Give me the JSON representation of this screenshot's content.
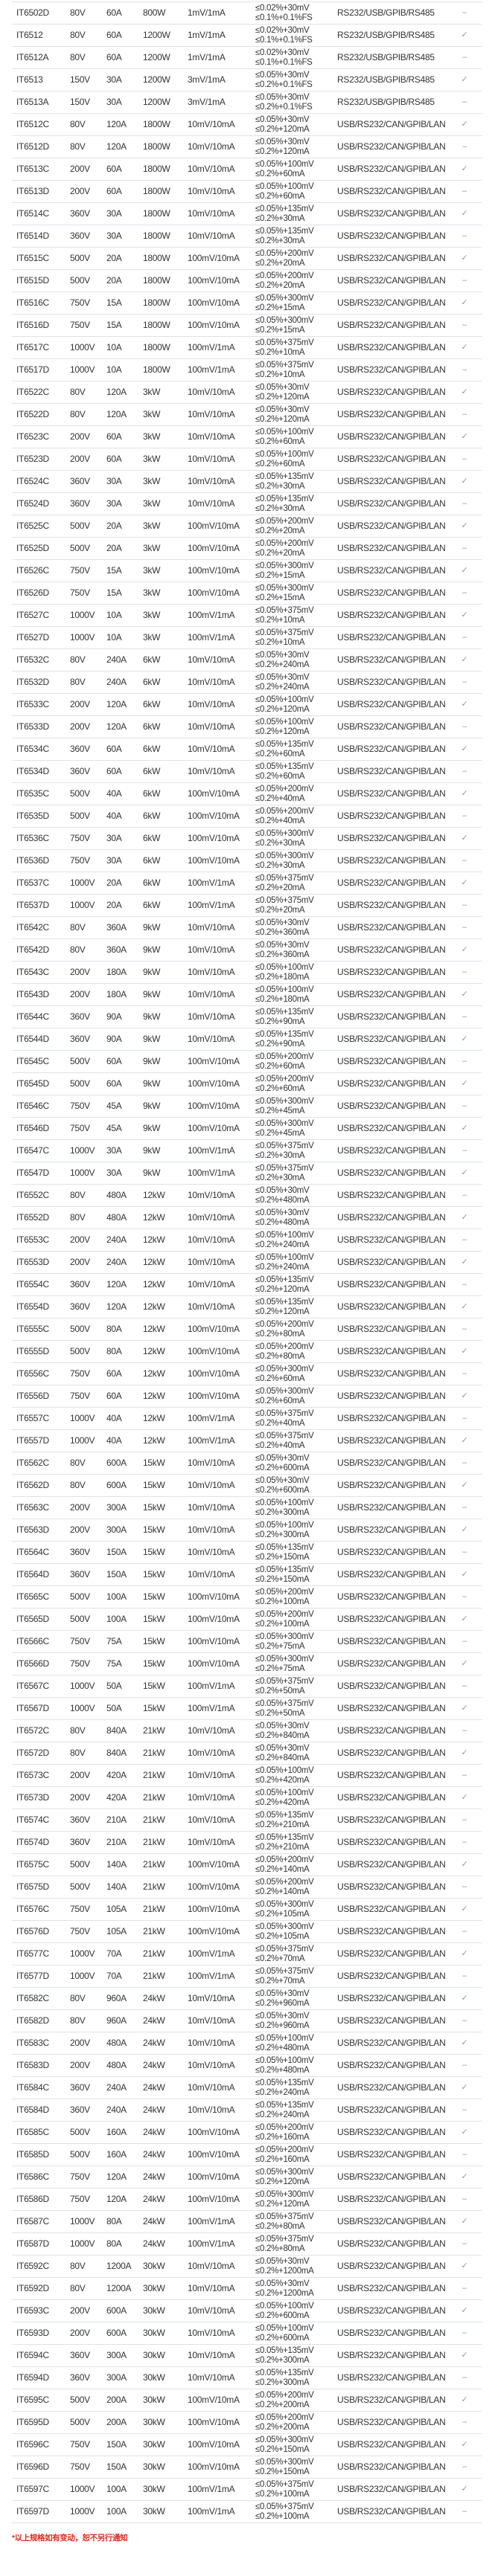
{
  "colors": {
    "text": "#333333",
    "border": "#dde3ea",
    "note": "#e02a1e",
    "mark": "#999999"
  },
  "rows": [
    [
      "IT6502D",
      "80V",
      "60A",
      "800W",
      "1mV/1mA",
      "≤0.02%+30mV",
      "≤0.1%+0.1%FS",
      "RS232/USB/GPIB/RS485",
      "–"
    ],
    [
      "IT6512",
      "80V",
      "60A",
      "1200W",
      "1mV/1mA",
      "≤0.02%+30mV",
      "≤0.1%+0.1%FS",
      "RS232/USB/GPIB/RS485",
      "✓"
    ],
    [
      "IT6512A",
      "80V",
      "60A",
      "1200W",
      "1mV/1mA",
      "≤0.02%+30mV",
      "≤0.1%+0.1%FS",
      "RS232/USB/GPIB/RS485",
      "–"
    ],
    [
      "IT6513",
      "150V",
      "30A",
      "1200W",
      "3mV/1mA",
      "≤0.05%+30mV",
      "≤0.2%+0.1%FS",
      "RS232/USB/GPIB/RS485",
      "✓"
    ],
    [
      "IT6513A",
      "150V",
      "30A",
      "1200W",
      "3mV/1mA",
      "≤0.05%+30mV",
      "≤0.2%+0.1%FS",
      "RS232/USB/GPIB/RS485",
      "–"
    ],
    [
      "IT6512C",
      "80V",
      "120A",
      "1800W",
      "10mV/10mA",
      "≤0.05%+30mV",
      "≤0.2%+120mA",
      "USB/RS232/CAN/GPIB/LAN",
      "✓"
    ],
    [
      "IT6512D",
      "80V",
      "120A",
      "1800W",
      "10mV/10mA",
      "≤0.05%+30mV",
      "≤0.2%+120mA",
      "USB/RS232/CAN/GPIB/LAN",
      "–"
    ],
    [
      "IT6513C",
      "200V",
      "60A",
      "1800W",
      "10mV/10mA",
      "≤0.05%+100mV",
      "≤0.2%+60mA",
      "USB/RS232/CAN/GPIB/LAN",
      "✓"
    ],
    [
      "IT6513D",
      "200V",
      "60A",
      "1800W",
      "10mV/10mA",
      "≤0.05%+100mV",
      "≤0.2%+60mA",
      "USB/RS232/CAN/GPIB/LAN",
      "–"
    ],
    [
      "IT6514C",
      "360V",
      "30A",
      "1800W",
      "10mV/10mA",
      "≤0.05%+135mV",
      "≤0.2%+30mA",
      "USB/RS232/CAN/GPIB/LAN",
      "✓"
    ],
    [
      "IT6514D",
      "360V",
      "30A",
      "1800W",
      "10mV/10mA",
      "≤0.05%+135mV",
      "≤0.2%+30mA",
      "USB/RS232/CAN/GPIB/LAN",
      "–"
    ],
    [
      "IT6515C",
      "500V",
      "20A",
      "1800W",
      "100mV/10mA",
      "≤0.05%+200mV",
      "≤0.2%+20mA",
      "USB/RS232/CAN/GPIB/LAN",
      "✓"
    ],
    [
      "IT6515D",
      "500V",
      "20A",
      "1800W",
      "100mV/10mA",
      "≤0.05%+200mV",
      "≤0.2%+20mA",
      "USB/RS232/CAN/GPIB/LAN",
      "–"
    ],
    [
      "IT6516C",
      "750V",
      "15A",
      "1800W",
      "100mV/10mA",
      "≤0.05%+300mV",
      "≤0.2%+15mA",
      "USB/RS232/CAN/GPIB/LAN",
      "✓"
    ],
    [
      "IT6516D",
      "750V",
      "15A",
      "1800W",
      "100mV/10mA",
      "≤0.05%+300mV",
      "≤0.2%+15mA",
      "USB/RS232/CAN/GPIB/LAN",
      "–"
    ],
    [
      "IT6517C",
      "1000V",
      "10A",
      "1800W",
      "100mV/1mA",
      "≤0.05%+375mV",
      "≤0.2%+10mA",
      "USB/RS232/CAN/GPIB/LAN",
      "✓"
    ],
    [
      "IT6517D",
      "1000V",
      "10A",
      "1800W",
      "100mV/1mA",
      "≤0.05%+375mV",
      "≤0.2%+10mA",
      "USB/RS232/CAN/GPIB/LAN",
      "–"
    ],
    [
      "IT6522C",
      "80V",
      "120A",
      "3kW",
      "10mV/10mA",
      "≤0.05%+30mV",
      "≤0.2%+120mA",
      "USB/RS232/CAN/GPIB/LAN",
      "✓"
    ],
    [
      "IT6522D",
      "80V",
      "120A",
      "3kW",
      "10mV/10mA",
      "≤0.05%+30mV",
      "≤0.2%+120mA",
      "USB/RS232/CAN/GPIB/LAN",
      "–"
    ],
    [
      "IT6523C",
      "200V",
      "60A",
      "3kW",
      "10mV/10mA",
      "≤0.05%+100mV",
      "≤0.2%+60mA",
      "USB/RS232/CAN/GPIB/LAN",
      "✓"
    ],
    [
      "IT6523D",
      "200V",
      "60A",
      "3kW",
      "10mV/10mA",
      "≤0.05%+100mV",
      "≤0.2%+60mA",
      "USB/RS232/CAN/GPIB/LAN",
      "–"
    ],
    [
      "IT6524C",
      "360V",
      "30A",
      "3kW",
      "10mV/10mA",
      "≤0.05%+135mV",
      "≤0.2%+30mA",
      "USB/RS232/CAN/GPIB/LAN",
      "✓"
    ],
    [
      "IT6524D",
      "360V",
      "30A",
      "3kW",
      "10mV/10mA",
      "≤0.05%+135mV",
      "≤0.2%+30mA",
      "USB/RS232/CAN/GPIB/LAN",
      "–"
    ],
    [
      "IT6525C",
      "500V",
      "20A",
      "3kW",
      "100mV/10mA",
      "≤0.05%+200mV",
      "≤0.2%+20mA",
      "USB/RS232/CAN/GPIB/LAN",
      "✓"
    ],
    [
      "IT6525D",
      "500V",
      "20A",
      "3kW",
      "100mV/10mA",
      "≤0.05%+200mV",
      "≤0.2%+20mA",
      "USB/RS232/CAN/GPIB/LAN",
      "–"
    ],
    [
      "IT6526C",
      "750V",
      "15A",
      "3kW",
      "100mV/10mA",
      "≤0.05%+300mV",
      "≤0.2%+15mA",
      "USB/RS232/CAN/GPIB/LAN",
      "✓"
    ],
    [
      "IT6526D",
      "750V",
      "15A",
      "3kW",
      "100mV/10mA",
      "≤0.05%+300mV",
      "≤0.2%+15mA",
      "USB/RS232/CAN/GPIB/LAN",
      "–"
    ],
    [
      "IT6527C",
      "1000V",
      "10A",
      "3kW",
      "100mV/1mA",
      "≤0.05%+375mV",
      "≤0.2%+10mA",
      "USB/RS232/CAN/GPIB/LAN",
      "✓"
    ],
    [
      "IT6527D",
      "1000V",
      "10A",
      "3kW",
      "100mV/1mA",
      "≤0.05%+375mV",
      "≤0.2%+10mA",
      "USB/RS232/CAN/GPIB/LAN",
      "–"
    ],
    [
      "IT6532C",
      "80V",
      "240A",
      "6kW",
      "10mV/10mA",
      "≤0.05%+30mV",
      "≤0.2%+240mA",
      "USB/RS232/CAN/GPIB/LAN",
      "✓"
    ],
    [
      "IT6532D",
      "80V",
      "240A",
      "6kW",
      "10mV/10mA",
      "≤0.05%+30mV",
      "≤0.2%+240mA",
      "USB/RS232/CAN/GPIB/LAN",
      "–"
    ],
    [
      "IT6533C",
      "200V",
      "120A",
      "6kW",
      "10mV/10mA",
      "≤0.05%+100mV",
      "≤0.2%+120mA",
      "USB/RS232/CAN/GPIB/LAN",
      "✓"
    ],
    [
      "IT6533D",
      "200V",
      "120A",
      "6kW",
      "10mV/10mA",
      "≤0.05%+100mV",
      "≤0.2%+120mA",
      "USB/RS232/CAN/GPIB/LAN",
      "–"
    ],
    [
      "IT6534C",
      "360V",
      "60A",
      "6kW",
      "10mV/10mA",
      "≤0.05%+135mV",
      "≤0.2%+60mA",
      "USB/RS232/CAN/GPIB/LAN",
      "✓"
    ],
    [
      "IT6534D",
      "360V",
      "60A",
      "6kW",
      "10mV/10mA",
      "≤0.05%+135mV",
      "≤0.2%+60mA",
      "USB/RS232/CAN/GPIB/LAN",
      "–"
    ],
    [
      "IT6535C",
      "500V",
      "40A",
      "6kW",
      "100mV/10mA",
      "≤0.05%+200mV",
      "≤0.2%+40mA",
      "USB/RS232/CAN/GPIB/LAN",
      "✓"
    ],
    [
      "IT6535D",
      "500V",
      "40A",
      "6kW",
      "100mV/10mA",
      "≤0.05%+200mV",
      "≤0.2%+40mA",
      "USB/RS232/CAN/GPIB/LAN",
      "–"
    ],
    [
      "IT6536C",
      "750V",
      "30A",
      "6kW",
      "100mV/10mA",
      "≤0.05%+300mV",
      "≤0.2%+30mA",
      "USB/RS232/CAN/GPIB/LAN",
      "✓"
    ],
    [
      "IT6536D",
      "750V",
      "30A",
      "6kW",
      "100mV/10mA",
      "≤0.05%+300mV",
      "≤0.2%+30mA",
      "USB/RS232/CAN/GPIB/LAN",
      "–"
    ],
    [
      "IT6537C",
      "1000V",
      "20A",
      "6kW",
      "100mV/1mA",
      "≤0.05%+375mV",
      "≤0.2%+20mA",
      "USB/RS232/CAN/GPIB/LAN",
      "✓"
    ],
    [
      "IT6537D",
      "1000V",
      "20A",
      "6kW",
      "100mV/1mA",
      "≤0.05%+375mV",
      "≤0.2%+20mA",
      "USB/RS232/CAN/GPIB/LAN",
      "–"
    ],
    [
      "IT6542C",
      "80V",
      "360A",
      "9kW",
      "10mV/10mA",
      "≤0.05%+30mV",
      "≤0.2%+360mA",
      "USB/RS232/CAN/GPIB/LAN",
      "–"
    ],
    [
      "IT6542D",
      "80V",
      "360A",
      "9kW",
      "10mV/10mA",
      "≤0.05%+30mV",
      "≤0.2%+360mA",
      "USB/RS232/CAN/GPIB/LAN",
      "✓"
    ],
    [
      "IT6543C",
      "200V",
      "180A",
      "9kW",
      "10mV/10mA",
      "≤0.05%+100mV",
      "≤0.2%+180mA",
      "USB/RS232/CAN/GPIB/LAN",
      "–"
    ],
    [
      "IT6543D",
      "200V",
      "180A",
      "9kW",
      "10mV/10mA",
      "≤0.05%+100mV",
      "≤0.2%+180mA",
      "USB/RS232/CAN/GPIB/LAN",
      "✓"
    ],
    [
      "IT6544C",
      "360V",
      "90A",
      "9kW",
      "10mV/10mA",
      "≤0.05%+135mV",
      "≤0.2%+90mA",
      "USB/RS232/CAN/GPIB/LAN",
      "–"
    ],
    [
      "IT6544D",
      "360V",
      "90A",
      "9kW",
      "10mV/10mA",
      "≤0.05%+135mV",
      "≤0.2%+90mA",
      "USB/RS232/CAN/GPIB/LAN",
      "✓"
    ],
    [
      "IT6545C",
      "500V",
      "60A",
      "9kW",
      "100mV/10mA",
      "≤0.05%+200mV",
      "≤0.2%+60mA",
      "USB/RS232/CAN/GPIB/LAN",
      "–"
    ],
    [
      "IT6545D",
      "500V",
      "60A",
      "9kW",
      "100mV/10mA",
      "≤0.05%+200mV",
      "≤0.2%+60mA",
      "USB/RS232/CAN/GPIB/LAN",
      "✓"
    ],
    [
      "IT6546C",
      "750V",
      "45A",
      "9kW",
      "100mV/10mA",
      "≤0.05%+300mV",
      "≤0.2%+45mA",
      "USB/RS232/CAN/GPIB/LAN",
      "–"
    ],
    [
      "IT6546D",
      "750V",
      "45A",
      "9kW",
      "100mV/10mA",
      "≤0.05%+300mV",
      "≤0.2%+45mA",
      "USB/RS232/CAN/GPIB/LAN",
      "✓"
    ],
    [
      "IT6547C",
      "1000V",
      "30A",
      "9kW",
      "100mV/1mA",
      "≤0.05%+375mV",
      "≤0.2%+30mA",
      "USB/RS232/CAN/GPIB/LAN",
      "–"
    ],
    [
      "IT6547D",
      "1000V",
      "30A",
      "9kW",
      "100mV/1mA",
      "≤0.05%+375mV",
      "≤0.2%+30mA",
      "USB/RS232/CAN/GPIB/LAN",
      "✓"
    ],
    [
      "IT6552C",
      "80V",
      "480A",
      "12kW",
      "10mV/10mA",
      "≤0.05%+30mV",
      "≤0.2%+480mA",
      "USB/RS232/CAN/GPIB/LAN",
      "–"
    ],
    [
      "IT6552D",
      "80V",
      "480A",
      "12kW",
      "10mV/10mA",
      "≤0.05%+30mV",
      "≤0.2%+480mA",
      "USB/RS232/CAN/GPIB/LAN",
      "✓"
    ],
    [
      "IT6553C",
      "200V",
      "240A",
      "12kW",
      "10mV/10mA",
      "≤0.05%+100mV",
      "≤0.2%+240mA",
      "USB/RS232/CAN/GPIB/LAN",
      "–"
    ],
    [
      "IT6553D",
      "200V",
      "240A",
      "12kW",
      "10mV/10mA",
      "≤0.05%+100mV",
      "≤0.2%+240mA",
      "USB/RS232/CAN/GPIB/LAN",
      "✓"
    ],
    [
      "IT6554C",
      "360V",
      "120A",
      "12kW",
      "10mV/10mA",
      "≤0.05%+135mV",
      "≤0.2%+120mA",
      "USB/RS232/CAN/GPIB/LAN",
      "–"
    ],
    [
      "IT6554D",
      "360V",
      "120A",
      "12kW",
      "10mV/10mA",
      "≤0.05%+135mV",
      "≤0.2%+120mA",
      "USB/RS232/CAN/GPIB/LAN",
      "✓"
    ],
    [
      "IT6555C",
      "500V",
      "80A",
      "12kW",
      "100mV/10mA",
      "≤0.05%+200mV",
      "≤0.2%+80mA",
      "USB/RS232/CAN/GPIB/LAN",
      "–"
    ],
    [
      "IT6555D",
      "500V",
      "80A",
      "12kW",
      "100mV/10mA",
      "≤0.05%+200mV",
      "≤0.2%+80mA",
      "USB/RS232/CAN/GPIB/LAN",
      "✓"
    ],
    [
      "IT6556C",
      "750V",
      "60A",
      "12kW",
      "100mV/10mA",
      "≤0.05%+300mV",
      "≤0.2%+60mA",
      "USB/RS232/CAN/GPIB/LAN",
      "–"
    ],
    [
      "IT6556D",
      "750V",
      "60A",
      "12kW",
      "100mV/10mA",
      "≤0.05%+300mV",
      "≤0.2%+60mA",
      "USB/RS232/CAN/GPIB/LAN",
      "✓"
    ],
    [
      "IT6557C",
      "1000V",
      "40A",
      "12kW",
      "100mV/1mA",
      "≤0.05%+375mV",
      "≤0.2%+40mA",
      "USB/RS232/CAN/GPIB/LAN",
      "–"
    ],
    [
      "IT6557D",
      "1000V",
      "40A",
      "12kW",
      "100mV/1mA",
      "≤0.05%+375mV",
      "≤0.2%+40mA",
      "USB/RS232/CAN/GPIB/LAN",
      "✓"
    ],
    [
      "IT6562C",
      "80V",
      "600A",
      "15kW",
      "10mV/10mA",
      "≤0.05%+30mV",
      "≤0.2%+600mA",
      "USB/RS232/CAN/GPIB/LAN",
      "–"
    ],
    [
      "IT6562D",
      "80V",
      "600A",
      "15kW",
      "10mV/10mA",
      "≤0.05%+30mV",
      "≤0.2%+600mA",
      "USB/RS232/CAN/GPIB/LAN",
      "✓"
    ],
    [
      "IT6563C",
      "200V",
      "300A",
      "15kW",
      "10mV/10mA",
      "≤0.05%+100mV",
      "≤0.2%+300mA",
      "USB/RS232/CAN/GPIB/LAN",
      "–"
    ],
    [
      "IT6563D",
      "200V",
      "300A",
      "15kW",
      "10mV/10mA",
      "≤0.05%+100mV",
      "≤0.2%+300mA",
      "USB/RS232/CAN/GPIB/LAN",
      "✓"
    ],
    [
      "IT6564C",
      "360V",
      "150A",
      "15kW",
      "10mV/10mA",
      "≤0.05%+135mV",
      "≤0.2%+150mA",
      "USB/RS232/CAN/GPIB/LAN",
      "–"
    ],
    [
      "IT6564D",
      "360V",
      "150A",
      "15kW",
      "10mV/10mA",
      "≤0.05%+135mV",
      "≤0.2%+150mA",
      "USB/RS232/CAN/GPIB/LAN",
      "✓"
    ],
    [
      "IT6565C",
      "500V",
      "100A",
      "15kW",
      "100mV/10mA",
      "≤0.05%+200mV",
      "≤0.2%+100mA",
      "USB/RS232/CAN/GPIB/LAN",
      "–"
    ],
    [
      "IT6565D",
      "500V",
      "100A",
      "15kW",
      "100mV/10mA",
      "≤0.05%+200mV",
      "≤0.2%+100mA",
      "USB/RS232/CAN/GPIB/LAN",
      "✓"
    ],
    [
      "IT6566C",
      "750V",
      "75A",
      "15kW",
      "100mV/10mA",
      "≤0.05%+300mV",
      "≤0.2%+75mA",
      "USB/RS232/CAN/GPIB/LAN",
      "–"
    ],
    [
      "IT6566D",
      "750V",
      "75A",
      "15kW",
      "100mV/10mA",
      "≤0.05%+300mV",
      "≤0.2%+75mA",
      "USB/RS232/CAN/GPIB/LAN",
      "✓"
    ],
    [
      "IT6567C",
      "1000V",
      "50A",
      "15kW",
      "100mV/1mA",
      "≤0.05%+375mV",
      "≤0.2%+50mA",
      "USB/RS232/CAN/GPIB/LAN",
      "–"
    ],
    [
      "IT6567D",
      "1000V",
      "50A",
      "15kW",
      "100mV/1mA",
      "≤0.05%+375mV",
      "≤0.2%+50mA",
      "USB/RS232/CAN/GPIB/LAN",
      "✓"
    ],
    [
      "IT6572C",
      "80V",
      "840A",
      "21kW",
      "10mV/10mA",
      "≤0.05%+30mV",
      "≤0.2%+840mA",
      "USB/RS232/CAN/GPIB/LAN",
      "–"
    ],
    [
      "IT6572D",
      "80V",
      "840A",
      "21kW",
      "10mV/10mA",
      "≤0.05%+30mV",
      "≤0.2%+840mA",
      "USB/RS232/CAN/GPIB/LAN",
      "✓"
    ],
    [
      "IT6573C",
      "200V",
      "420A",
      "21kW",
      "10mV/10mA",
      "≤0.05%+100mV",
      "≤0.2%+420mA",
      "USB/RS232/CAN/GPIB/LAN",
      "–"
    ],
    [
      "IT6573D",
      "200V",
      "420A",
      "21kW",
      "10mV/10mA",
      "≤0.05%+100mV",
      "≤0.2%+420mA",
      "USB/RS232/CAN/GPIB/LAN",
      "✓"
    ],
    [
      "IT6574C",
      "360V",
      "210A",
      "21kW",
      "10mV/10mA",
      "≤0.05%+135mV",
      "≤0.2%+210mA",
      "USB/RS232/CAN/GPIB/LAN",
      "–"
    ],
    [
      "IT6574D",
      "360V",
      "210A",
      "21kW",
      "10mV/10mA",
      "≤0.05%+135mV",
      "≤0.2%+210mA",
      "USB/RS232/CAN/GPIB/LAN",
      "–"
    ],
    [
      "IT6575C",
      "500V",
      "140A",
      "21kW",
      "100mV/10mA",
      "≤0.05%+200mV",
      "≤0.2%+140mA",
      "USB/RS232/CAN/GPIB/LAN",
      "✓"
    ],
    [
      "IT6575D",
      "500V",
      "140A",
      "21kW",
      "100mV/10mA",
      "≤0.05%+200mV",
      "≤0.2%+140mA",
      "USB/RS232/CAN/GPIB/LAN",
      "–"
    ],
    [
      "IT6576C",
      "750V",
      "105A",
      "21kW",
      "100mV/10mA",
      "≤0.05%+300mV",
      "≤0.2%+105mA",
      "USB/RS232/CAN/GPIB/LAN",
      "✓"
    ],
    [
      "IT6576D",
      "750V",
      "105A",
      "21kW",
      "100mV/10mA",
      "≤0.05%+300mV",
      "≤0.2%+105mA",
      "USB/RS232/CAN/GPIB/LAN",
      "–"
    ],
    [
      "IT6577C",
      "1000V",
      "70A",
      "21kW",
      "100mV/1mA",
      "≤0.05%+375mV",
      "≤0.2%+70mA",
      "USB/RS232/CAN/GPIB/LAN",
      "✓"
    ],
    [
      "IT6577D",
      "1000V",
      "70A",
      "21kW",
      "100mV/1mA",
      "≤0.05%+375mV",
      "≤0.2%+70mA",
      "USB/RS232/CAN/GPIB/LAN",
      "–"
    ],
    [
      "IT6582C",
      "80V",
      "960A",
      "24kW",
      "10mV/10mA",
      "≤0.05%+30mV",
      "≤0.2%+960mA",
      "USB/RS232/CAN/GPIB/LAN",
      "✓"
    ],
    [
      "IT6582D",
      "80V",
      "960A",
      "24kW",
      "10mV/10mA",
      "≤0.05%+30mV",
      "≤0.2%+960mA",
      "USB/RS232/CAN/GPIB/LAN",
      "–"
    ],
    [
      "IT6583C",
      "200V",
      "480A",
      "24kW",
      "10mV/10mA",
      "≤0.05%+100mV",
      "≤0.2%+480mA",
      "USB/RS232/CAN/GPIB/LAN",
      "✓"
    ],
    [
      "IT6583D",
      "200V",
      "480A",
      "24kW",
      "10mV/10mA",
      "≤0.05%+100mV",
      "≤0.2%+480mA",
      "USB/RS232/CAN/GPIB/LAN",
      "–"
    ],
    [
      "IT6584C",
      "360V",
      "240A",
      "24kW",
      "10mV/10mA",
      "≤0.05%+135mV",
      "≤0.2%+240mA",
      "USB/RS232/CAN/GPIB/LAN",
      "✓"
    ],
    [
      "IT6584D",
      "360V",
      "240A",
      "24kW",
      "10mV/10mA",
      "≤0.05%+135mV",
      "≤0.2%+240mA",
      "USB/RS232/CAN/GPIB/LAN",
      "–"
    ],
    [
      "IT6585C",
      "500V",
      "160A",
      "24kW",
      "100mV/10mA",
      "≤0.05%+200mV",
      "≤0.2%+160mA",
      "USB/RS232/CAN/GPIB/LAN",
      "✓"
    ],
    [
      "IT6585D",
      "500V",
      "160A",
      "24kW",
      "100mV/10mA",
      "≤0.05%+200mV",
      "≤0.2%+160mA",
      "USB/RS232/CAN/GPIB/LAN",
      "–"
    ],
    [
      "IT6586C",
      "750V",
      "120A",
      "24kW",
      "100mV/10mA",
      "≤0.05%+300mV",
      "≤0.2%+120mA",
      "USB/RS232/CAN/GPIB/LAN",
      "✓"
    ],
    [
      "IT6586D",
      "750V",
      "120A",
      "24kW",
      "100mV/10mA",
      "≤0.05%+300mV",
      "≤0.2%+120mA",
      "USB/RS232/CAN/GPIB/LAN",
      "–"
    ],
    [
      "IT6587C",
      "1000V",
      "80A",
      "24kW",
      "100mV/1mA",
      "≤0.05%+375mV",
      "≤0.2%+80mA",
      "USB/RS232/CAN/GPIB/LAN",
      "✓"
    ],
    [
      "IT6587D",
      "1000V",
      "80A",
      "24kW",
      "100mV/1mA",
      "≤0.05%+375mV",
      "≤0.2%+80mA",
      "USB/RS232/CAN/GPIB/LAN",
      "–"
    ],
    [
      "IT6592C",
      "80V",
      "1200A",
      "30kW",
      "10mV/10mA",
      "≤0.05%+30mV",
      "≤0.2%+1200mA",
      "USB/RS232/CAN/GPIB/LAN",
      "✓"
    ],
    [
      "IT6592D",
      "80V",
      "1200A",
      "30kW",
      "10mV/10mA",
      "≤0.05%+30mV",
      "≤0.2%+1200mA",
      "USB/RS232/CAN/GPIB/LAN",
      "–"
    ],
    [
      "IT6593C",
      "200V",
      "600A",
      "30kW",
      "10mV/10mA",
      "≤0.05%+100mV",
      "≤0.2%+600mA",
      "USB/RS232/CAN/GPIB/LAN",
      "✓"
    ],
    [
      "IT6593D",
      "200V",
      "600A",
      "30kW",
      "10mV/10mA",
      "≤0.05%+100mV",
      "≤0.2%+600mA",
      "USB/RS232/CAN/GPIB/LAN",
      "–"
    ],
    [
      "IT6594C",
      "360V",
      "300A",
      "30kW",
      "10mV/10mA",
      "≤0.05%+135mV",
      "≤0.2%+300mA",
      "USB/RS232/CAN/GPIB/LAN",
      "✓"
    ],
    [
      "IT6594D",
      "360V",
      "300A",
      "30kW",
      "10mV/10mA",
      "≤0.05%+135mV",
      "≤0.2%+300mA",
      "USB/RS232/CAN/GPIB/LAN",
      "–"
    ],
    [
      "IT6595C",
      "500V",
      "200A",
      "30kW",
      "100mV/10mA",
      "≤0.05%+200mV",
      "≤0.2%+200mA",
      "USB/RS232/CAN/GPIB/LAN",
      "✓"
    ],
    [
      "IT6595D",
      "500V",
      "200A",
      "30kW",
      "100mV/10mA",
      "≤0.05%+200mV",
      "≤0.2%+200mA",
      "USB/RS232/CAN/GPIB/LAN",
      "–"
    ],
    [
      "IT6596C",
      "750V",
      "150A",
      "30kW",
      "100mV/10mA",
      "≤0.05%+300mV",
      "≤0.2%+150mA",
      "USB/RS232/CAN/GPIB/LAN",
      "✓"
    ],
    [
      "IT6596D",
      "750V",
      "150A",
      "30kW",
      "100mV/10mA",
      "≤0.05%+300mV",
      "≤0.2%+150mA",
      "USB/RS232/CAN/GPIB/LAN",
      "–"
    ],
    [
      "IT6597C",
      "1000V",
      "100A",
      "30kW",
      "100mV/1mA",
      "≤0.05%+375mV",
      "≤0.2%+100mA",
      "USB/RS232/CAN/GPIB/LAN",
      "✓"
    ],
    [
      "IT6597D",
      "1000V",
      "100A",
      "30kW",
      "100mV/1mA",
      "≤0.05%+375mV",
      "≤0.2%+100mA",
      "USB/RS232/CAN/GPIB/LAN",
      "–"
    ]
  ],
  "footnote": "*以上规格如有变动，恕不另行通知"
}
